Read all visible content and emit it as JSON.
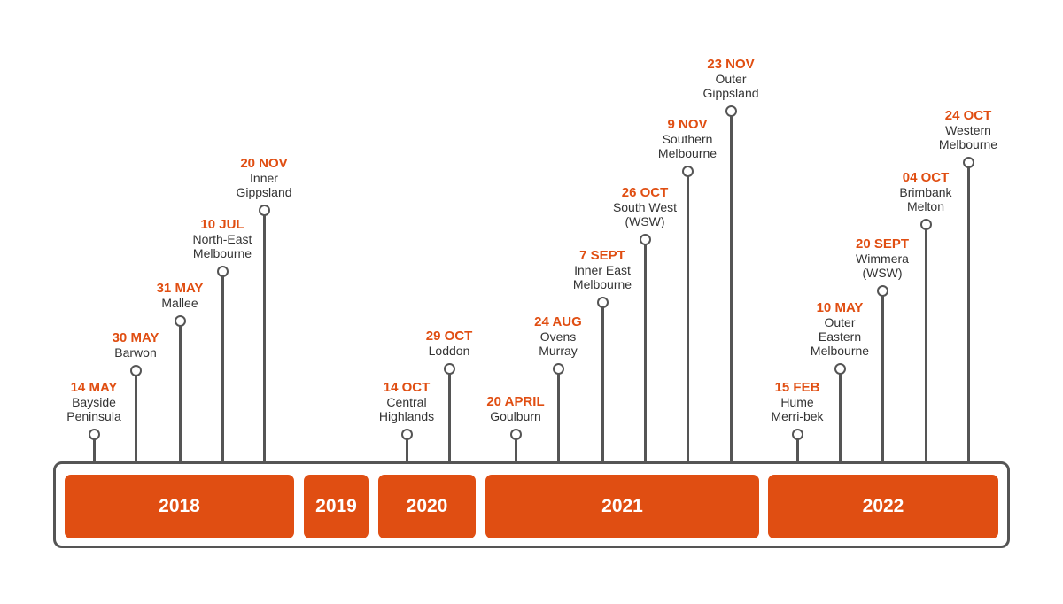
{
  "colors": {
    "accent": "#e04e12",
    "line": "#555555",
    "text": "#333333"
  },
  "years": [
    "2018",
    "2019",
    "2020",
    "2021",
    "2022"
  ],
  "events": [
    {
      "date": "14 MAY",
      "name": "Bayside\nPeninsula"
    },
    {
      "date": "30 MAY",
      "name": "Barwon"
    },
    {
      "date": "31 MAY",
      "name": "Mallee"
    },
    {
      "date": "10 JUL",
      "name": "North-East\nMelbourne"
    },
    {
      "date": "20 NOV",
      "name": "Inner\nGippsland"
    },
    {
      "date": "14 OCT",
      "name": "Central\nHighlands"
    },
    {
      "date": "29 OCT",
      "name": "Loddon"
    },
    {
      "date": "20 APRIL",
      "name": "Goulburn"
    },
    {
      "date": "24 AUG",
      "name": "Ovens\nMurray"
    },
    {
      "date": "7 SEPT",
      "name": "Inner East\nMelbourne"
    },
    {
      "date": "26 OCT",
      "name": "South West\n(WSW)"
    },
    {
      "date": "9 NOV",
      "name": "Southern\nMelbourne"
    },
    {
      "date": "23 NOV",
      "name": "Outer\nGippsland"
    },
    {
      "date": "15 FEB",
      "name": "Hume\nMerri-bek"
    },
    {
      "date": "10 MAY",
      "name": "Outer\nEastern\nMelbourne"
    },
    {
      "date": "20 SEPT",
      "name": "Wimmera\n(WSW)"
    },
    {
      "date": "04 OCT",
      "name": "Brimbank\nMelton"
    },
    {
      "date": "24 OCT",
      "name": "Western\nMelbourne"
    }
  ]
}
